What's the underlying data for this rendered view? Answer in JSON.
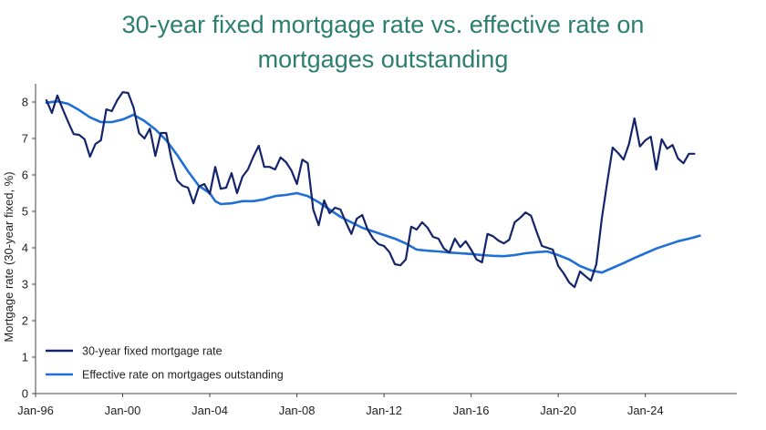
{
  "chart_data": {
    "type": "line",
    "title_line1": "30-year fixed mortgage rate vs. effective rate on",
    "title_line2": "mortgages outstanding",
    "xlabel": "",
    "ylabel": "Mortgage rate (30-year fixed, %)",
    "xlim": [
      1996,
      2028.2
    ],
    "ylim": [
      0,
      8.5
    ],
    "x_ticks": [
      {
        "value": 1996,
        "label": "Jan-96"
      },
      {
        "value": 2000,
        "label": "Jan-00"
      },
      {
        "value": 2004,
        "label": "Jan-04"
      },
      {
        "value": 2008,
        "label": "Jan-08"
      },
      {
        "value": 2012,
        "label": "Jan-12"
      },
      {
        "value": 2016,
        "label": "Jan-16"
      },
      {
        "value": 2020,
        "label": "Jan-20"
      },
      {
        "value": 2024,
        "label": "Jan-24"
      }
    ],
    "y_ticks": [
      0,
      1,
      2,
      3,
      4,
      5,
      6,
      7,
      8
    ],
    "grid": false,
    "legend_position": "bottom-left",
    "series": [
      {
        "name": "30-year fixed mortgage rate",
        "color": "#14246b",
        "points": [
          [
            1996.5,
            8.05
          ],
          [
            1996.75,
            7.7
          ],
          [
            1997.0,
            8.18
          ],
          [
            1997.25,
            7.8
          ],
          [
            1997.5,
            7.45
          ],
          [
            1997.75,
            7.12
          ],
          [
            1998.0,
            7.1
          ],
          [
            1998.25,
            6.98
          ],
          [
            1998.5,
            6.5
          ],
          [
            1998.75,
            6.85
          ],
          [
            1999.0,
            6.95
          ],
          [
            1999.25,
            7.8
          ],
          [
            1999.5,
            7.75
          ],
          [
            1999.75,
            8.05
          ],
          [
            2000.0,
            8.27
          ],
          [
            2000.25,
            8.25
          ],
          [
            2000.5,
            7.85
          ],
          [
            2000.75,
            7.15
          ],
          [
            2001.0,
            7.0
          ],
          [
            2001.25,
            7.27
          ],
          [
            2001.5,
            6.52
          ],
          [
            2001.75,
            7.15
          ],
          [
            2002.0,
            7.15
          ],
          [
            2002.25,
            6.4
          ],
          [
            2002.5,
            5.85
          ],
          [
            2002.75,
            5.7
          ],
          [
            2003.0,
            5.65
          ],
          [
            2003.25,
            5.22
          ],
          [
            2003.5,
            5.68
          ],
          [
            2003.75,
            5.75
          ],
          [
            2004.0,
            5.48
          ],
          [
            2004.25,
            6.22
          ],
          [
            2004.5,
            5.62
          ],
          [
            2004.75,
            5.65
          ],
          [
            2005.0,
            6.05
          ],
          [
            2005.25,
            5.5
          ],
          [
            2005.5,
            5.95
          ],
          [
            2005.75,
            6.15
          ],
          [
            2006.0,
            6.5
          ],
          [
            2006.25,
            6.8
          ],
          [
            2006.5,
            6.22
          ],
          [
            2006.75,
            6.22
          ],
          [
            2007.0,
            6.15
          ],
          [
            2007.25,
            6.48
          ],
          [
            2007.5,
            6.35
          ],
          [
            2007.75,
            6.12
          ],
          [
            2008.0,
            5.75
          ],
          [
            2008.25,
            6.42
          ],
          [
            2008.5,
            6.32
          ],
          [
            2008.75,
            5.05
          ],
          [
            2009.0,
            4.62
          ],
          [
            2009.25,
            5.3
          ],
          [
            2009.5,
            4.95
          ],
          [
            2009.75,
            5.1
          ],
          [
            2010.0,
            5.05
          ],
          [
            2010.25,
            4.7
          ],
          [
            2010.5,
            4.38
          ],
          [
            2010.75,
            4.8
          ],
          [
            2011.0,
            4.9
          ],
          [
            2011.25,
            4.5
          ],
          [
            2011.5,
            4.25
          ],
          [
            2011.75,
            4.1
          ],
          [
            2012.0,
            4.05
          ],
          [
            2012.25,
            3.88
          ],
          [
            2012.5,
            3.55
          ],
          [
            2012.75,
            3.52
          ],
          [
            2013.0,
            3.68
          ],
          [
            2013.25,
            4.58
          ],
          [
            2013.5,
            4.5
          ],
          [
            2013.75,
            4.7
          ],
          [
            2014.0,
            4.55
          ],
          [
            2014.25,
            4.3
          ],
          [
            2014.5,
            4.25
          ],
          [
            2014.75,
            3.98
          ],
          [
            2015.0,
            3.87
          ],
          [
            2015.25,
            4.25
          ],
          [
            2015.5,
            4.02
          ],
          [
            2015.75,
            4.18
          ],
          [
            2016.0,
            3.95
          ],
          [
            2016.25,
            3.68
          ],
          [
            2016.5,
            3.6
          ],
          [
            2016.75,
            4.38
          ],
          [
            2017.0,
            4.32
          ],
          [
            2017.25,
            4.2
          ],
          [
            2017.5,
            4.12
          ],
          [
            2017.75,
            4.22
          ],
          [
            2018.0,
            4.7
          ],
          [
            2018.25,
            4.82
          ],
          [
            2018.5,
            4.97
          ],
          [
            2018.75,
            4.88
          ],
          [
            2019.0,
            4.45
          ],
          [
            2019.25,
            4.05
          ],
          [
            2019.5,
            4.0
          ],
          [
            2019.75,
            3.95
          ],
          [
            2020.0,
            3.5
          ],
          [
            2020.25,
            3.3
          ],
          [
            2020.5,
            3.05
          ],
          [
            2020.75,
            2.92
          ],
          [
            2021.0,
            3.35
          ],
          [
            2021.25,
            3.22
          ],
          [
            2021.5,
            3.1
          ],
          [
            2021.75,
            3.55
          ],
          [
            2022.0,
            4.8
          ],
          [
            2022.25,
            5.8
          ],
          [
            2022.5,
            6.75
          ],
          [
            2022.75,
            6.6
          ],
          [
            2023.0,
            6.42
          ],
          [
            2023.25,
            6.85
          ],
          [
            2023.5,
            7.55
          ],
          [
            2023.75,
            6.78
          ],
          [
            2024.0,
            6.95
          ],
          [
            2024.25,
            7.05
          ],
          [
            2024.5,
            6.15
          ],
          [
            2024.75,
            6.98
          ],
          [
            2025.0,
            6.72
          ],
          [
            2025.25,
            6.82
          ],
          [
            2025.5,
            6.45
          ],
          [
            2025.75,
            6.32
          ],
          [
            2026.0,
            6.58
          ],
          [
            2026.25,
            6.58
          ]
        ]
      },
      {
        "name": "Effective rate on mortgages outstanding",
        "color": "#1f6fd6",
        "points": [
          [
            1996.5,
            7.98
          ],
          [
            1997.0,
            8.02
          ],
          [
            1997.5,
            7.95
          ],
          [
            1998.0,
            7.78
          ],
          [
            1998.5,
            7.58
          ],
          [
            1999.0,
            7.45
          ],
          [
            1999.5,
            7.45
          ],
          [
            2000.0,
            7.52
          ],
          [
            2000.5,
            7.65
          ],
          [
            2001.0,
            7.48
          ],
          [
            2001.5,
            7.25
          ],
          [
            2002.0,
            6.95
          ],
          [
            2002.5,
            6.55
          ],
          [
            2003.0,
            6.1
          ],
          [
            2003.5,
            5.7
          ],
          [
            2004.0,
            5.5
          ],
          [
            2004.25,
            5.28
          ],
          [
            2004.5,
            5.2
          ],
          [
            2005.0,
            5.22
          ],
          [
            2005.5,
            5.28
          ],
          [
            2006.0,
            5.28
          ],
          [
            2006.5,
            5.33
          ],
          [
            2007.0,
            5.42
          ],
          [
            2007.5,
            5.45
          ],
          [
            2008.0,
            5.5
          ],
          [
            2008.5,
            5.42
          ],
          [
            2009.0,
            5.25
          ],
          [
            2009.5,
            5.05
          ],
          [
            2010.0,
            4.85
          ],
          [
            2010.5,
            4.7
          ],
          [
            2011.0,
            4.55
          ],
          [
            2011.5,
            4.45
          ],
          [
            2012.0,
            4.35
          ],
          [
            2012.5,
            4.25
          ],
          [
            2013.0,
            4.12
          ],
          [
            2013.5,
            3.95
          ],
          [
            2014.0,
            3.92
          ],
          [
            2014.5,
            3.9
          ],
          [
            2015.0,
            3.87
          ],
          [
            2015.5,
            3.85
          ],
          [
            2016.0,
            3.83
          ],
          [
            2016.5,
            3.8
          ],
          [
            2017.0,
            3.78
          ],
          [
            2017.5,
            3.77
          ],
          [
            2018.0,
            3.8
          ],
          [
            2018.5,
            3.85
          ],
          [
            2019.0,
            3.88
          ],
          [
            2019.5,
            3.9
          ],
          [
            2020.0,
            3.8
          ],
          [
            2020.5,
            3.68
          ],
          [
            2021.0,
            3.5
          ],
          [
            2021.5,
            3.38
          ],
          [
            2022.0,
            3.32
          ],
          [
            2022.5,
            3.45
          ],
          [
            2023.0,
            3.58
          ],
          [
            2023.5,
            3.72
          ],
          [
            2024.0,
            3.85
          ],
          [
            2024.5,
            3.98
          ],
          [
            2025.0,
            4.08
          ],
          [
            2025.5,
            4.18
          ],
          [
            2026.0,
            4.25
          ],
          [
            2026.5,
            4.33
          ]
        ]
      }
    ]
  }
}
